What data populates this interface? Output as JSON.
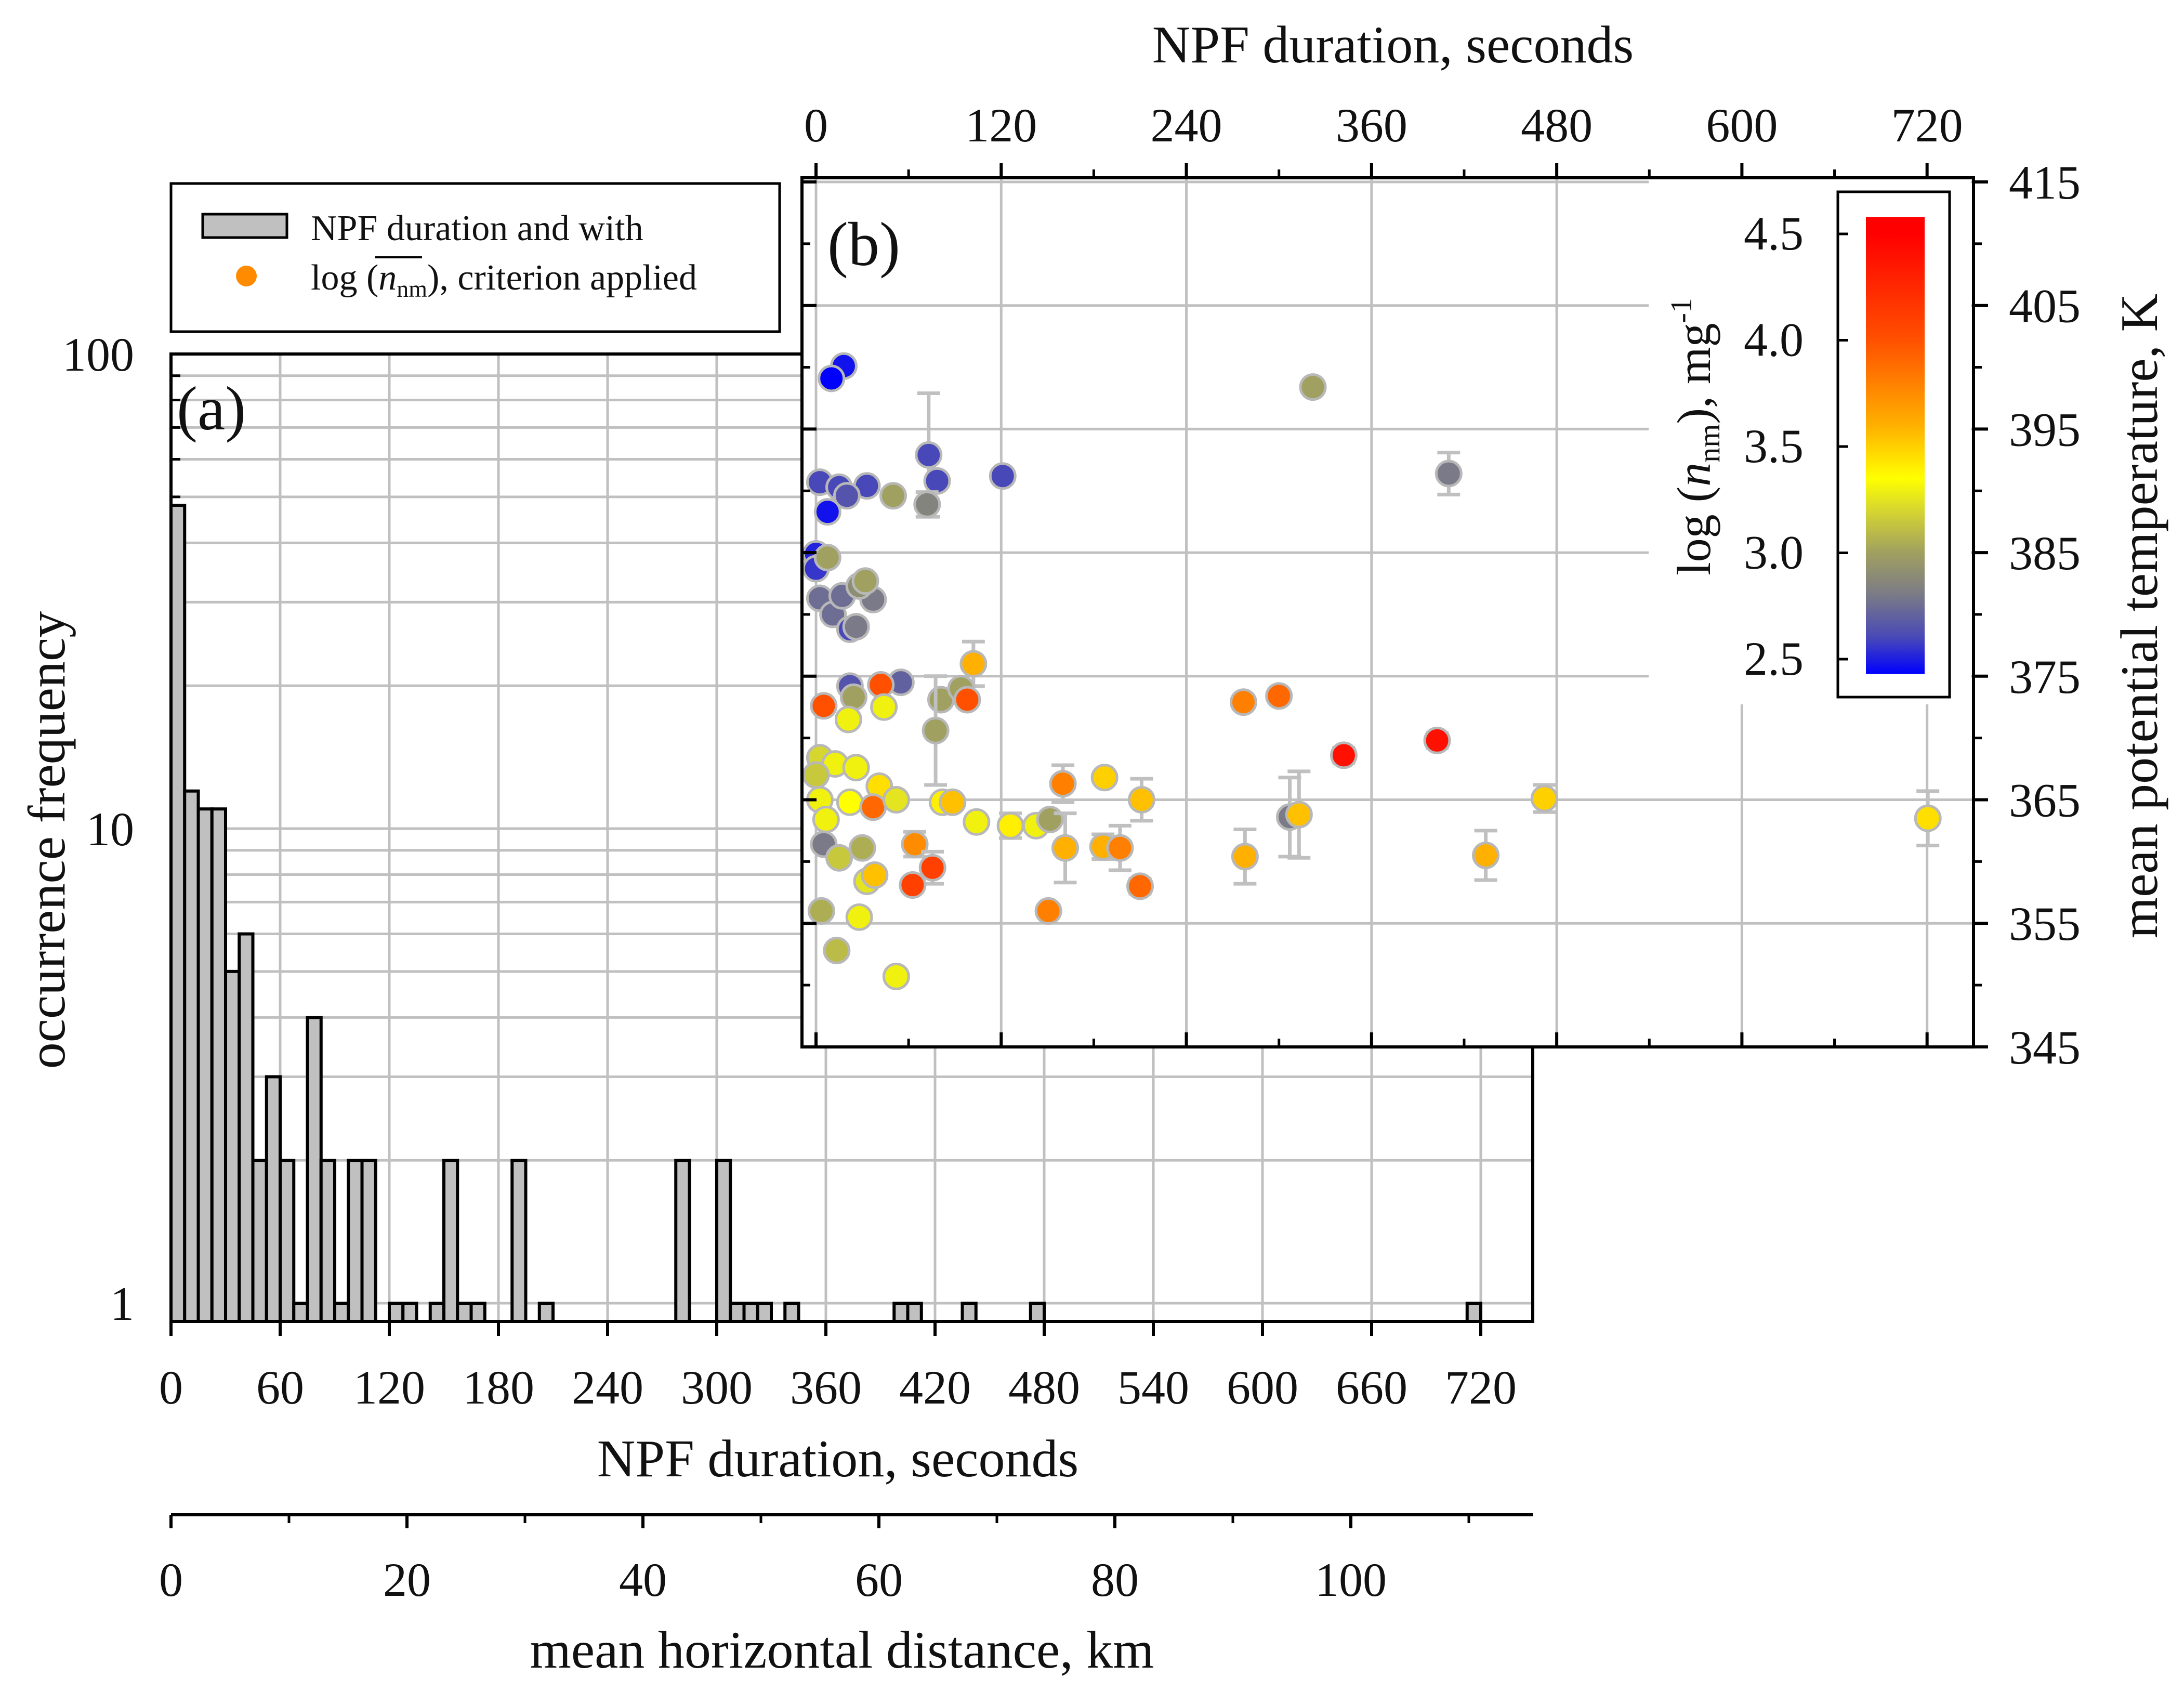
{
  "chart_data": [
    {
      "id": "a",
      "type": "bar",
      "panel_label": "(a)",
      "xlabel": "NPF duration, seconds",
      "ylabel": "occurrence frequency",
      "xlim": [
        0,
        743
      ],
      "ylim": [
        0.92,
        100
      ],
      "yscale": "log",
      "xticks": [
        0,
        60,
        120,
        180,
        240,
        300,
        360,
        420,
        480,
        540,
        600,
        660,
        720
      ],
      "yticks": [
        1,
        10,
        100
      ],
      "bin_width": 7.5,
      "bins": [
        {
          "start": 0,
          "count": 48
        },
        {
          "start": 7.5,
          "count": 12
        },
        {
          "start": 15,
          "count": 11
        },
        {
          "start": 22.5,
          "count": 11
        },
        {
          "start": 30,
          "count": 5
        },
        {
          "start": 37.5,
          "count": 6
        },
        {
          "start": 45,
          "count": 2
        },
        {
          "start": 52.5,
          "count": 3
        },
        {
          "start": 60,
          "count": 2
        },
        {
          "start": 67.5,
          "count": 1
        },
        {
          "start": 75,
          "count": 4
        },
        {
          "start": 82.5,
          "count": 2
        },
        {
          "start": 90,
          "count": 1
        },
        {
          "start": 97.5,
          "count": 2
        },
        {
          "start": 105,
          "count": 2
        },
        {
          "start": 120,
          "count": 1
        },
        {
          "start": 127.5,
          "count": 1
        },
        {
          "start": 142.5,
          "count": 1
        },
        {
          "start": 150,
          "count": 2
        },
        {
          "start": 157.5,
          "count": 1
        },
        {
          "start": 165,
          "count": 1
        },
        {
          "start": 187.5,
          "count": 2
        },
        {
          "start": 202.5,
          "count": 1
        },
        {
          "start": 277.5,
          "count": 2
        },
        {
          "start": 300,
          "count": 2
        },
        {
          "start": 307.5,
          "count": 1
        },
        {
          "start": 315,
          "count": 1
        },
        {
          "start": 322.5,
          "count": 1
        },
        {
          "start": 337.5,
          "count": 1
        },
        {
          "start": 397.5,
          "count": 1
        },
        {
          "start": 405,
          "count": 1
        },
        {
          "start": 435,
          "count": 1
        },
        {
          "start": 472.5,
          "count": 1
        },
        {
          "start": 712.5,
          "count": 1
        }
      ],
      "secondary_xaxis": {
        "label": "mean horizontal distance, km",
        "lim": [
          0,
          115
        ],
        "ticks": [
          0,
          20,
          40,
          60,
          80,
          100
        ],
        "minor_ticks": [
          10,
          30,
          50,
          70,
          90,
          110
        ]
      },
      "legend": {
        "placement": "top-left",
        "entries": [
          {
            "label": "NPF duration and with",
            "marker": "gray-bar",
            "color": "#c0c0c0"
          },
          {
            "prefix": "log (",
            "symbol": "n",
            "sub": "nm",
            "suffix": "), criterion applied",
            "marker": "orange-dot",
            "color": "#ff8c00"
          }
        ]
      }
    },
    {
      "id": "b",
      "type": "scatter",
      "panel_label": "(b)",
      "xlabel": "NPF duration, seconds",
      "ylabel": "mean potential temperature, K",
      "xlim": [
        0,
        752
      ],
      "ylim": [
        345,
        415
      ],
      "xticks": [
        0,
        120,
        240,
        360,
        480,
        600,
        720
      ],
      "yticks": [
        345,
        355,
        365,
        375,
        385,
        395,
        405,
        415
      ],
      "colorbar": {
        "label_prefix": "log (",
        "label_symbol": "n",
        "label_sub": "nm",
        "label_suffix": "), mg",
        "label_sup": "-1",
        "range": [
          2.4,
          4.6
        ],
        "ticks": [
          "2.5",
          "3.0",
          "3.5",
          "4.0",
          "4.5"
        ],
        "stops": [
          {
            "v": 2.4,
            "color": "#0000ff"
          },
          {
            "v": 2.6,
            "color": "#4848b8"
          },
          {
            "v": 2.8,
            "color": "#7a7a88"
          },
          {
            "v": 3.0,
            "color": "#a0a060"
          },
          {
            "v": 3.2,
            "color": "#d6d630"
          },
          {
            "v": 3.35,
            "color": "#ffff00"
          },
          {
            "v": 3.6,
            "color": "#ffb000"
          },
          {
            "v": 4.0,
            "color": "#ff5000"
          },
          {
            "v": 4.5,
            "color": "#ff0000"
          }
        ]
      },
      "points": [
        {
          "x": 18,
          "y": 400.1,
          "c": 2.45
        },
        {
          "x": 10,
          "y": 399.1,
          "c": 2.4
        },
        {
          "x": 322,
          "y": 398.4,
          "c": 3.0
        },
        {
          "x": 73,
          "y": 392.9,
          "c": 2.6,
          "err": 5
        },
        {
          "x": 78.5,
          "y": 390.8,
          "c": 2.6
        },
        {
          "x": 121,
          "y": 391.2,
          "c": 2.6
        },
        {
          "x": 410,
          "y": 391.4,
          "c": 2.8,
          "err": 1.7
        },
        {
          "x": 2.5,
          "y": 390.7,
          "c": 2.6
        },
        {
          "x": 15,
          "y": 390.3,
          "c": 2.6
        },
        {
          "x": 33,
          "y": 390.4,
          "c": 2.6
        },
        {
          "x": 50,
          "y": 389.6,
          "c": 3.0
        },
        {
          "x": 7.5,
          "y": 388.3,
          "c": 2.45
        },
        {
          "x": 72,
          "y": 388.9,
          "c": 2.85,
          "err": 1
        },
        {
          "x": 20,
          "y": 389.6,
          "c": 2.65
        },
        {
          "x": 0,
          "y": 384.9,
          "c": 2.5
        },
        {
          "x": 0,
          "y": 383.7,
          "c": 2.55
        },
        {
          "x": 7.5,
          "y": 384.6,
          "c": 3.0
        },
        {
          "x": 2.5,
          "y": 381.3,
          "c": 2.75
        },
        {
          "x": 11,
          "y": 380.0,
          "c": 2.75
        },
        {
          "x": 17,
          "y": 381.5,
          "c": 2.75
        },
        {
          "x": 37,
          "y": 381.2,
          "c": 2.8
        },
        {
          "x": 28,
          "y": 382.3,
          "c": 2.9
        },
        {
          "x": 32,
          "y": 382.7,
          "c": 3.0
        },
        {
          "x": 22,
          "y": 378.8,
          "c": 2.6
        },
        {
          "x": 26,
          "y": 379.0,
          "c": 2.8
        },
        {
          "x": 102,
          "y": 376.0,
          "c": 3.6,
          "err": 1.8
        },
        {
          "x": 55,
          "y": 374.5,
          "c": 2.7
        },
        {
          "x": 42,
          "y": 374.3,
          "c": 4.0
        },
        {
          "x": 22,
          "y": 374.2,
          "c": 2.65
        },
        {
          "x": 24.4,
          "y": 373.3,
          "c": 3.0
        },
        {
          "x": 5,
          "y": 372.6,
          "c": 4.0
        },
        {
          "x": 44,
          "y": 372.5,
          "c": 3.3
        },
        {
          "x": 21,
          "y": 371.5,
          "c": 3.3
        },
        {
          "x": 81,
          "y": 373.1,
          "c": 3.0
        },
        {
          "x": 94,
          "y": 374.0,
          "c": 3.0
        },
        {
          "x": 98,
          "y": 373.1,
          "c": 4.0
        },
        {
          "x": 277,
          "y": 372.9,
          "c": 3.8
        },
        {
          "x": 300,
          "y": 373.4,
          "c": 3.9
        },
        {
          "x": 77.5,
          "y": 370.6,
          "c": 3.0,
          "err": 4.4
        },
        {
          "x": 342,
          "y": 368.6,
          "c": 4.4,
          "err": 0.6
        },
        {
          "x": 402.5,
          "y": 369.8,
          "c": 4.4,
          "err": 0.6
        },
        {
          "x": 2.5,
          "y": 368.4,
          "c": 3.2
        },
        {
          "x": 12.4,
          "y": 367.9,
          "c": 3.3
        },
        {
          "x": 26,
          "y": 367.6,
          "c": 3.3
        },
        {
          "x": 0,
          "y": 367.0,
          "c": 3.15
        },
        {
          "x": 41,
          "y": 366.1,
          "c": 3.45
        },
        {
          "x": 2.5,
          "y": 365.0,
          "c": 3.3
        },
        {
          "x": 22,
          "y": 364.8,
          "c": 3.35
        },
        {
          "x": 37,
          "y": 364.4,
          "c": 3.9
        },
        {
          "x": 52,
          "y": 365.0,
          "c": 3.25
        },
        {
          "x": 6.5,
          "y": 363.4,
          "c": 3.3
        },
        {
          "x": 5,
          "y": 361.4,
          "c": 2.8
        },
        {
          "x": 15,
          "y": 360.3,
          "c": 3.15
        },
        {
          "x": 30,
          "y": 361.1,
          "c": 3.05
        },
        {
          "x": 33,
          "y": 358.4,
          "c": 3.25
        },
        {
          "x": 38,
          "y": 358.9,
          "c": 3.55
        },
        {
          "x": 3.5,
          "y": 356.0,
          "c": 3.05
        },
        {
          "x": 28,
          "y": 355.5,
          "c": 3.3
        },
        {
          "x": 13.4,
          "y": 352.8,
          "c": 3.1
        },
        {
          "x": 52,
          "y": 350.7,
          "c": 3.3,
          "err": 0.5
        },
        {
          "x": 160,
          "y": 366.3,
          "c": 3.8,
          "err": 1.5
        },
        {
          "x": 187,
          "y": 366.8,
          "c": 3.5
        },
        {
          "x": 211,
          "y": 365.0,
          "c": 3.55,
          "err": 1.7
        },
        {
          "x": 82,
          "y": 364.8,
          "c": 3.4
        },
        {
          "x": 88.5,
          "y": 364.8,
          "c": 3.55
        },
        {
          "x": 104,
          "y": 363.2,
          "c": 3.3
        },
        {
          "x": 126,
          "y": 362.9,
          "c": 3.4,
          "err": 1
        },
        {
          "x": 142.6,
          "y": 362.9,
          "c": 3.3
        },
        {
          "x": 151.6,
          "y": 363.4,
          "c": 3.0
        },
        {
          "x": 161.5,
          "y": 361.1,
          "c": 3.6,
          "err": 2.8
        },
        {
          "x": 186,
          "y": 361.2,
          "c": 3.6,
          "err": 1
        },
        {
          "x": 197,
          "y": 361.1,
          "c": 3.8,
          "err": 1.8
        },
        {
          "x": 64,
          "y": 361.4,
          "c": 3.75,
          "err": 1
        },
        {
          "x": 75.5,
          "y": 359.5,
          "c": 4.1,
          "err": 1.3
        },
        {
          "x": 62.6,
          "y": 358.1,
          "c": 4.1
        },
        {
          "x": 210,
          "y": 358.0,
          "c": 3.9,
          "err": 0.6
        },
        {
          "x": 150.6,
          "y": 356.0,
          "c": 3.8,
          "err": 0.5
        },
        {
          "x": 278,
          "y": 360.4,
          "c": 3.6,
          "err": 2.2
        },
        {
          "x": 307,
          "y": 363.6,
          "c": 2.8,
          "err": 3.2
        },
        {
          "x": 313,
          "y": 363.8,
          "c": 3.55,
          "err": 3.5
        },
        {
          "x": 434,
          "y": 360.5,
          "c": 3.6,
          "err": 2
        },
        {
          "x": 472,
          "y": 365.1,
          "c": 3.5,
          "err": 1.1
        },
        {
          "x": 720.5,
          "y": 363.5,
          "c": 3.45,
          "err": 2.2
        }
      ]
    }
  ]
}
